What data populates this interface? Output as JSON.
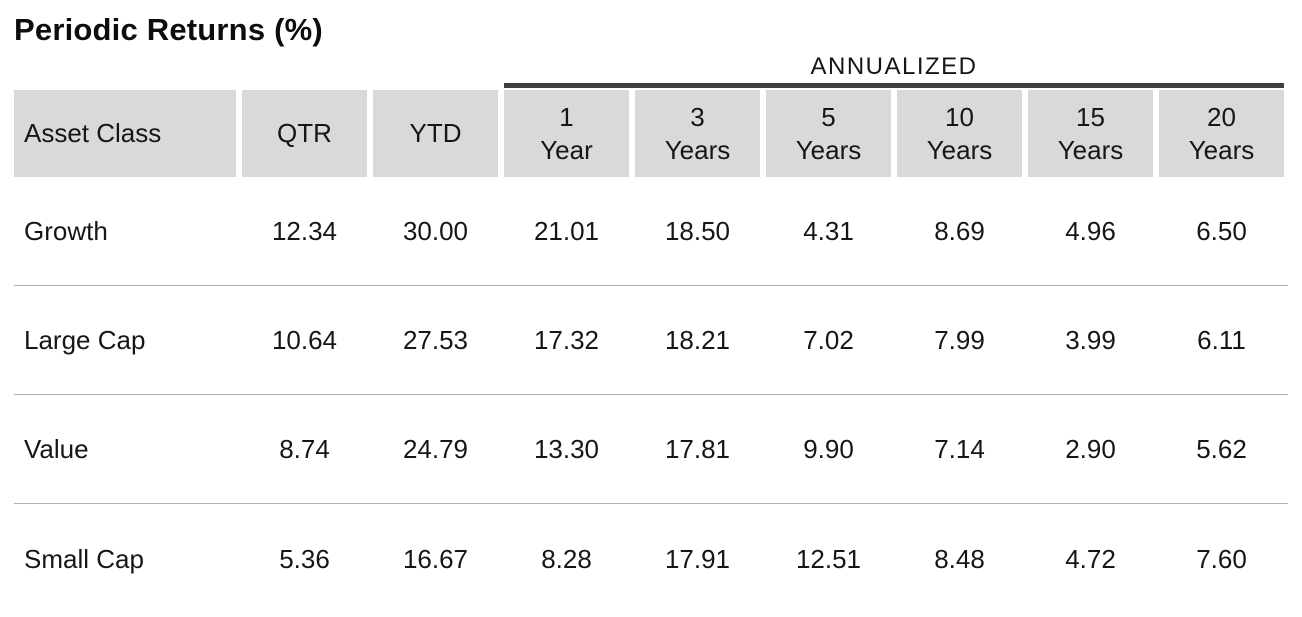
{
  "title": "Periodic Returns (%)",
  "colors": {
    "header_bg": "#d9d9d9",
    "group_underline": "#404040",
    "row_separator": "#b3b3b3",
    "text": "#161616",
    "background": "#ffffff"
  },
  "table": {
    "group_header": "ANNUALIZED",
    "header": {
      "asset_class": "Asset Class",
      "qtr": "QTR",
      "ytd": "YTD",
      "periods": [
        {
          "num": "1",
          "unit": "Year"
        },
        {
          "num": "3",
          "unit": "Years"
        },
        {
          "num": "5",
          "unit": "Years"
        },
        {
          "num": "10",
          "unit": "Years"
        },
        {
          "num": "15",
          "unit": "Years"
        },
        {
          "num": "20",
          "unit": "Years"
        }
      ]
    },
    "rows": [
      {
        "label": "Growth",
        "values": [
          "12.34",
          "30.00",
          "21.01",
          "18.50",
          "4.31",
          "8.69",
          "4.96",
          "6.50"
        ]
      },
      {
        "label": "Large Cap",
        "values": [
          "10.64",
          "27.53",
          "17.32",
          "18.21",
          "7.02",
          "7.99",
          "3.99",
          "6.11"
        ]
      },
      {
        "label": "Value",
        "values": [
          "8.74",
          "24.79",
          "13.30",
          "17.81",
          "9.90",
          "7.14",
          "2.90",
          "5.62"
        ]
      },
      {
        "label": "Small Cap",
        "values": [
          "5.36",
          "16.67",
          "8.28",
          "17.91",
          "12.51",
          "8.48",
          "4.72",
          "7.60"
        ]
      }
    ]
  },
  "chart_data": {
    "type": "table",
    "title": "Periodic Returns (%)",
    "group_header": {
      "label": "ANNUALIZED",
      "spans_columns": [
        "1 Year",
        "3 Years",
        "5 Years",
        "10 Years",
        "15 Years",
        "20 Years"
      ]
    },
    "columns": [
      "Asset Class",
      "QTR",
      "YTD",
      "1 Year",
      "3 Years",
      "5 Years",
      "10 Years",
      "15 Years",
      "20 Years"
    ],
    "rows": [
      {
        "asset_class": "Growth",
        "values": [
          12.34,
          30.0,
          21.01,
          18.5,
          4.31,
          8.69,
          4.96,
          6.5
        ]
      },
      {
        "asset_class": "Large Cap",
        "values": [
          10.64,
          27.53,
          17.32,
          18.21,
          7.02,
          7.99,
          3.99,
          6.11
        ]
      },
      {
        "asset_class": "Value",
        "values": [
          8.74,
          24.79,
          13.3,
          17.81,
          9.9,
          7.14,
          2.9,
          5.62
        ]
      },
      {
        "asset_class": "Small Cap",
        "values": [
          5.36,
          16.67,
          8.28,
          17.91,
          12.51,
          8.48,
          4.72,
          7.6
        ]
      }
    ]
  }
}
